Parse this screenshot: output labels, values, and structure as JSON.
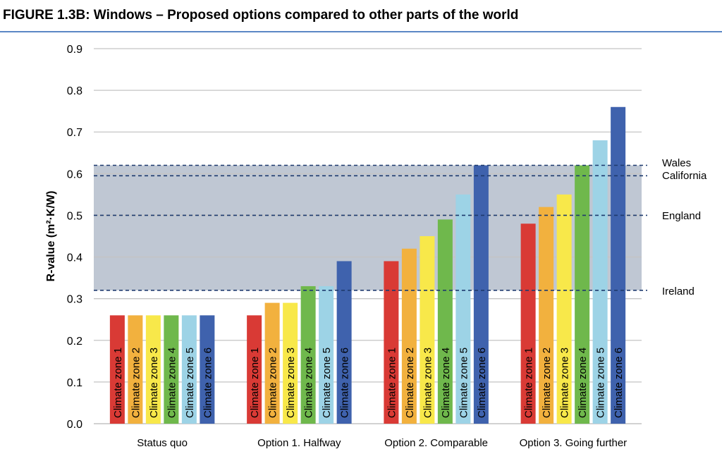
{
  "figure_title": "FIGURE 1.3B: Windows – Proposed options compared to other parts of the world",
  "chart_data": {
    "type": "bar",
    "ylabel": "R-value (m²·K/W)",
    "ylim": [
      0,
      0.9
    ],
    "yticks": [
      "0.0",
      "0.1",
      "0.2",
      "0.3",
      "0.4",
      "0.5",
      "0.6",
      "0.7",
      "0.8",
      "0.9"
    ],
    "categories": [
      "Status quo",
      "Option 1. Halfway",
      "Option 2. Comparable",
      "Option 3. Going further"
    ],
    "series": [
      {
        "name": "Climate zone 1",
        "color": "#d93a35",
        "values": [
          0.26,
          0.26,
          0.39,
          0.48
        ]
      },
      {
        "name": "Climate zone 2",
        "color": "#f2b13e",
        "values": [
          0.26,
          0.29,
          0.42,
          0.52
        ]
      },
      {
        "name": "Climate zone 3",
        "color": "#f8e84a",
        "values": [
          0.26,
          0.29,
          0.45,
          0.55
        ]
      },
      {
        "name": "Climate zone 4",
        "color": "#6fb84c",
        "values": [
          0.26,
          0.33,
          0.49,
          0.62
        ]
      },
      {
        "name": "Climate zone 5",
        "color": "#9dd3e6",
        "values": [
          0.26,
          0.33,
          0.55,
          0.68
        ]
      },
      {
        "name": "Climate zone 6",
        "color": "#3f62ad",
        "values": [
          0.26,
          0.39,
          0.62,
          0.76
        ]
      }
    ],
    "shaded_band": {
      "from": 0.32,
      "to": 0.62,
      "color": "#a9b4c4"
    },
    "reference_lines": [
      {
        "label": "Wales",
        "value": 0.62
      },
      {
        "label": "California",
        "value": 0.595
      },
      {
        "label": "England",
        "value": 0.5
      },
      {
        "label": "Ireland",
        "value": 0.32
      }
    ],
    "grid": true,
    "legend": "none"
  }
}
